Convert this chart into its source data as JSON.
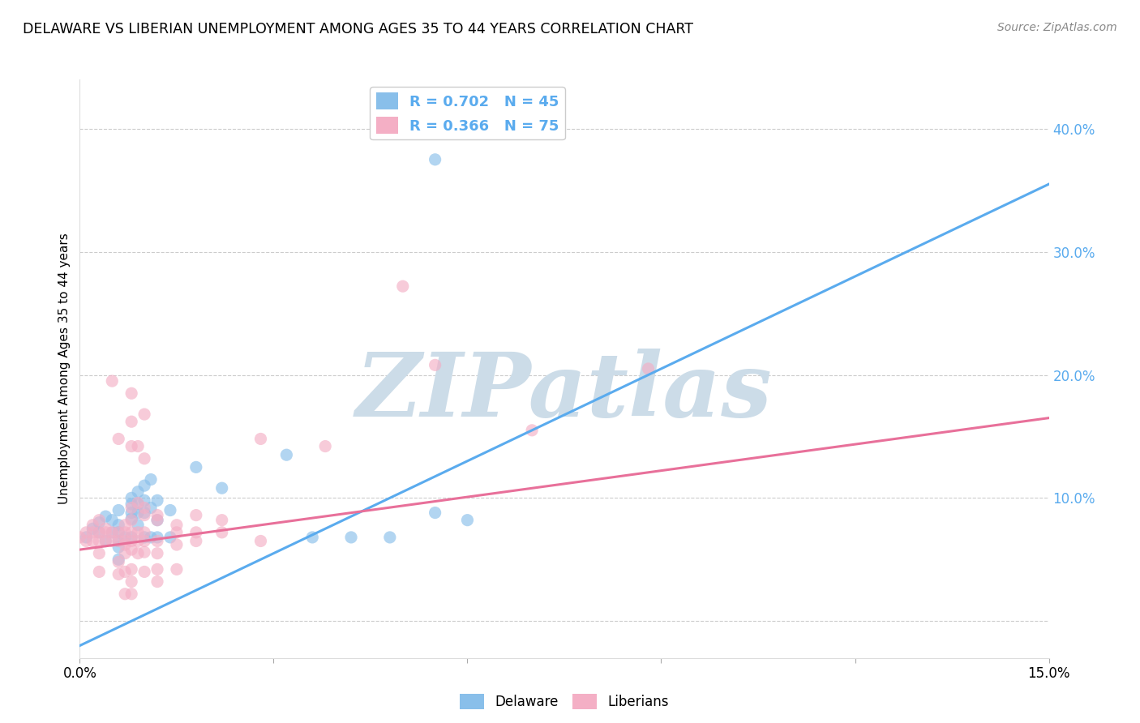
{
  "title": "DELAWARE VS LIBERIAN UNEMPLOYMENT AMONG AGES 35 TO 44 YEARS CORRELATION CHART",
  "source": "Source: ZipAtlas.com",
  "ylabel": "Unemployment Among Ages 35 to 44 years",
  "xlim": [
    0.0,
    0.15
  ],
  "ylim": [
    -0.03,
    0.44
  ],
  "ytick_vals": [
    0.0,
    0.1,
    0.2,
    0.3,
    0.4
  ],
  "ytick_labels": [
    "",
    "10.0%",
    "20.0%",
    "30.0%",
    "40.0%"
  ],
  "xtick_vals": [
    0.0,
    0.03,
    0.06,
    0.09,
    0.12,
    0.15
  ],
  "xtick_labels": [
    "0.0%",
    "",
    "",
    "",
    "",
    "15.0%"
  ],
  "legend_R_delaware": "R = 0.702",
  "legend_N_delaware": "N = 45",
  "legend_R_liberian": "R = 0.366",
  "legend_N_liberian": "N = 75",
  "delaware_color": "#89bfea",
  "liberian_color": "#f4afc5",
  "line_delaware_color": "#5aabee",
  "line_liberian_color": "#e8709a",
  "watermark": "ZIPatlas",
  "watermark_color": "#ccdce8",
  "background_color": "#ffffff",
  "delaware_scatter": [
    [
      0.001,
      0.068
    ],
    [
      0.002,
      0.075
    ],
    [
      0.003,
      0.08
    ],
    [
      0.003,
      0.072
    ],
    [
      0.004,
      0.085
    ],
    [
      0.004,
      0.065
    ],
    [
      0.005,
      0.082
    ],
    [
      0.005,
      0.072
    ],
    [
      0.006,
      0.09
    ],
    [
      0.006,
      0.078
    ],
    [
      0.006,
      0.072
    ],
    [
      0.006,
      0.065
    ],
    [
      0.006,
      0.06
    ],
    [
      0.006,
      0.05
    ],
    [
      0.007,
      0.068
    ],
    [
      0.008,
      0.1
    ],
    [
      0.008,
      0.095
    ],
    [
      0.008,
      0.088
    ],
    [
      0.008,
      0.083
    ],
    [
      0.008,
      0.068
    ],
    [
      0.009,
      0.105
    ],
    [
      0.009,
      0.095
    ],
    [
      0.009,
      0.088
    ],
    [
      0.009,
      0.078
    ],
    [
      0.01,
      0.11
    ],
    [
      0.01,
      0.098
    ],
    [
      0.01,
      0.088
    ],
    [
      0.01,
      0.068
    ],
    [
      0.011,
      0.115
    ],
    [
      0.011,
      0.092
    ],
    [
      0.011,
      0.068
    ],
    [
      0.012,
      0.098
    ],
    [
      0.012,
      0.082
    ],
    [
      0.012,
      0.068
    ],
    [
      0.014,
      0.09
    ],
    [
      0.014,
      0.068
    ],
    [
      0.018,
      0.125
    ],
    [
      0.022,
      0.108
    ],
    [
      0.032,
      0.135
    ],
    [
      0.036,
      0.068
    ],
    [
      0.042,
      0.068
    ],
    [
      0.048,
      0.068
    ],
    [
      0.055,
      0.088
    ],
    [
      0.06,
      0.082
    ],
    [
      0.055,
      0.375
    ]
  ],
  "liberian_scatter": [
    [
      0.0,
      0.068
    ],
    [
      0.001,
      0.072
    ],
    [
      0.001,
      0.065
    ],
    [
      0.002,
      0.078
    ],
    [
      0.002,
      0.072
    ],
    [
      0.002,
      0.065
    ],
    [
      0.003,
      0.082
    ],
    [
      0.003,
      0.072
    ],
    [
      0.003,
      0.065
    ],
    [
      0.003,
      0.055
    ],
    [
      0.003,
      0.04
    ],
    [
      0.004,
      0.075
    ],
    [
      0.004,
      0.072
    ],
    [
      0.004,
      0.065
    ],
    [
      0.005,
      0.195
    ],
    [
      0.005,
      0.072
    ],
    [
      0.005,
      0.065
    ],
    [
      0.006,
      0.148
    ],
    [
      0.006,
      0.072
    ],
    [
      0.006,
      0.065
    ],
    [
      0.006,
      0.048
    ],
    [
      0.006,
      0.038
    ],
    [
      0.007,
      0.078
    ],
    [
      0.007,
      0.072
    ],
    [
      0.007,
      0.065
    ],
    [
      0.007,
      0.062
    ],
    [
      0.007,
      0.055
    ],
    [
      0.007,
      0.04
    ],
    [
      0.007,
      0.022
    ],
    [
      0.008,
      0.185
    ],
    [
      0.008,
      0.162
    ],
    [
      0.008,
      0.142
    ],
    [
      0.008,
      0.092
    ],
    [
      0.008,
      0.082
    ],
    [
      0.008,
      0.072
    ],
    [
      0.008,
      0.065
    ],
    [
      0.008,
      0.058
    ],
    [
      0.008,
      0.042
    ],
    [
      0.008,
      0.032
    ],
    [
      0.008,
      0.022
    ],
    [
      0.009,
      0.142
    ],
    [
      0.009,
      0.096
    ],
    [
      0.009,
      0.072
    ],
    [
      0.009,
      0.065
    ],
    [
      0.009,
      0.055
    ],
    [
      0.01,
      0.168
    ],
    [
      0.01,
      0.132
    ],
    [
      0.01,
      0.092
    ],
    [
      0.01,
      0.086
    ],
    [
      0.01,
      0.072
    ],
    [
      0.01,
      0.065
    ],
    [
      0.01,
      0.056
    ],
    [
      0.01,
      0.04
    ],
    [
      0.012,
      0.086
    ],
    [
      0.012,
      0.082
    ],
    [
      0.012,
      0.065
    ],
    [
      0.012,
      0.055
    ],
    [
      0.012,
      0.042
    ],
    [
      0.012,
      0.032
    ],
    [
      0.015,
      0.078
    ],
    [
      0.015,
      0.072
    ],
    [
      0.015,
      0.062
    ],
    [
      0.015,
      0.042
    ],
    [
      0.018,
      0.086
    ],
    [
      0.018,
      0.072
    ],
    [
      0.018,
      0.065
    ],
    [
      0.022,
      0.082
    ],
    [
      0.022,
      0.072
    ],
    [
      0.028,
      0.148
    ],
    [
      0.028,
      0.065
    ],
    [
      0.038,
      0.142
    ],
    [
      0.05,
      0.272
    ],
    [
      0.055,
      0.208
    ],
    [
      0.07,
      0.155
    ],
    [
      0.088,
      0.205
    ]
  ],
  "delaware_line_x": [
    0.0,
    0.15
  ],
  "delaware_line_y": [
    -0.02,
    0.355
  ],
  "liberian_line_x": [
    0.0,
    0.15
  ],
  "liberian_line_y": [
    0.058,
    0.165
  ]
}
